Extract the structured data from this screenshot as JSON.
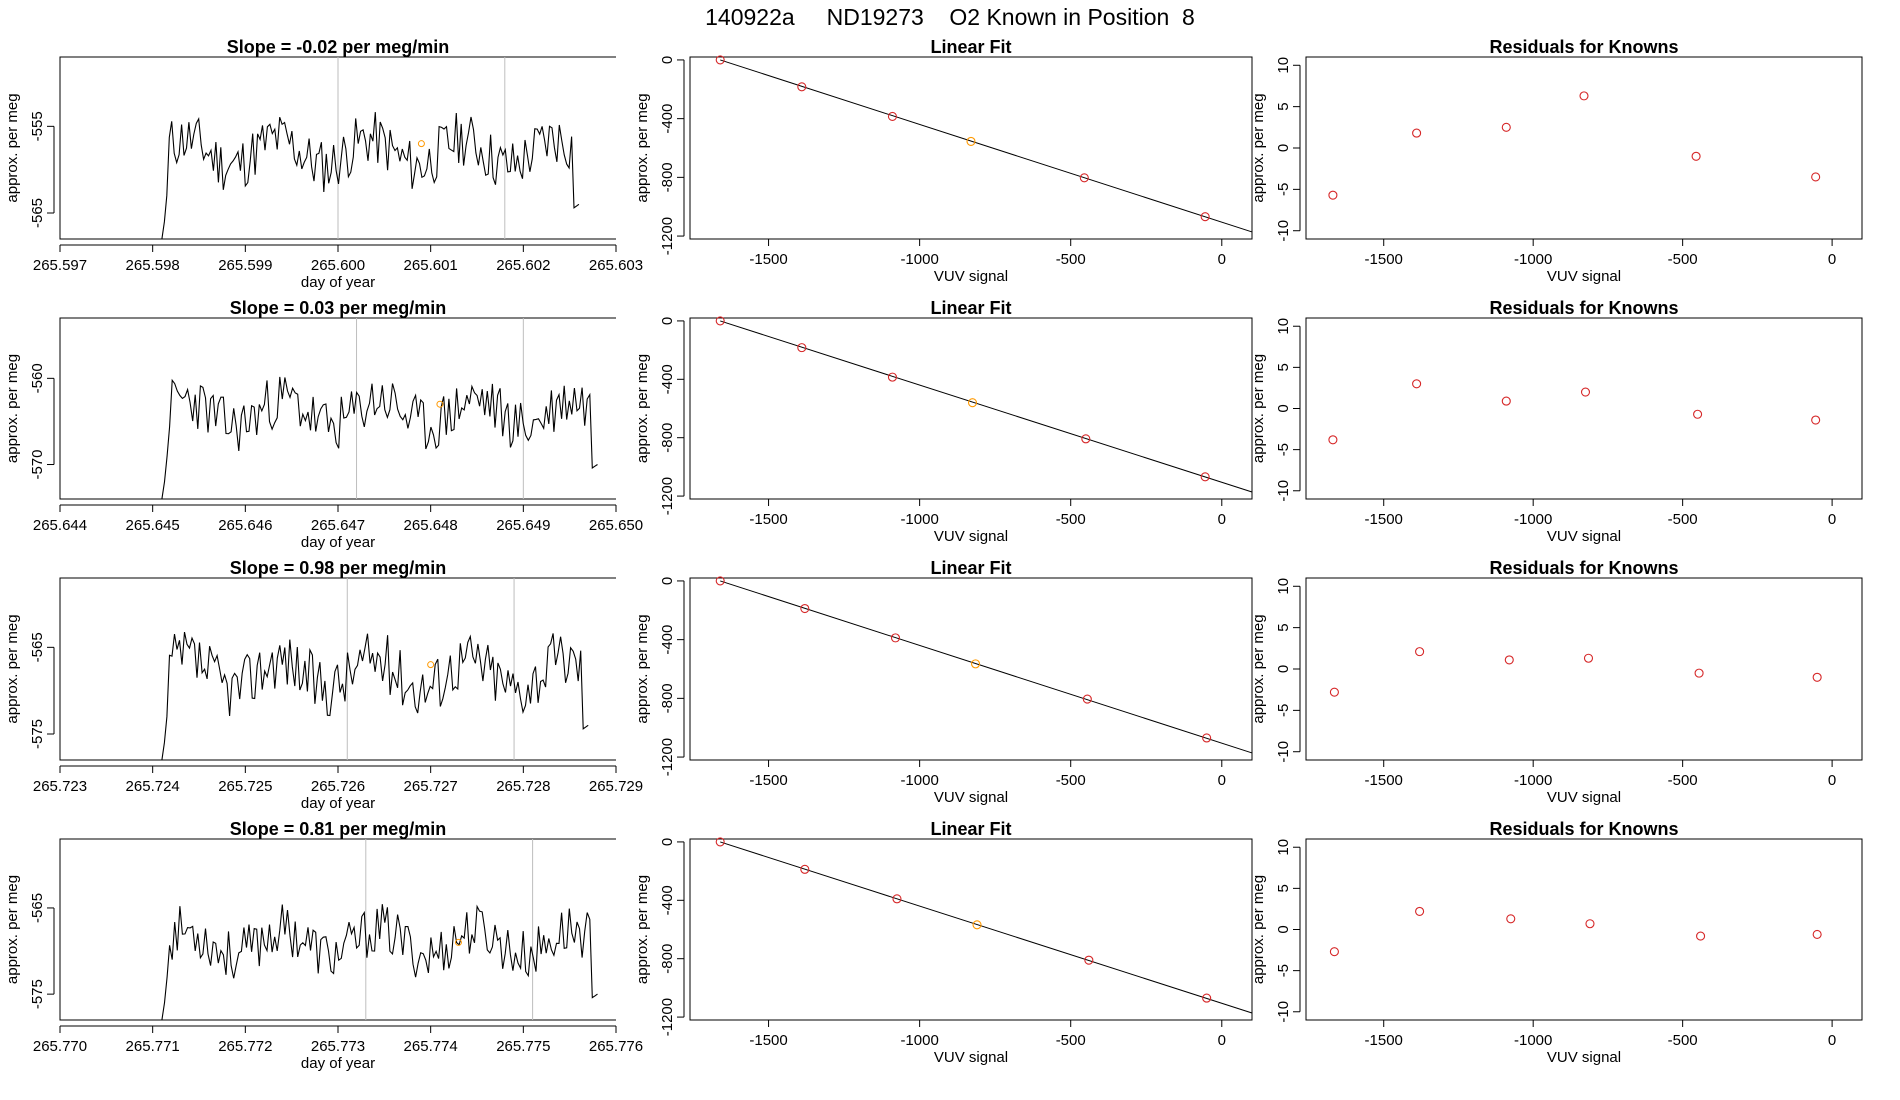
{
  "figure_title": "140922a     ND19273    O2 Known in Position  8",
  "colors": {
    "trace": "#000000",
    "vline": "#bebebe",
    "known_point": "#d62728",
    "highlight_point": "#ff9900",
    "fit_line": "#000000"
  },
  "chart_data": [
    {
      "type": "line",
      "row": 1,
      "col": 1,
      "title": "Slope =  -0.02  per meg/min",
      "xlabel": "day of year",
      "ylabel": "approx. per meg",
      "xlim": [
        265.597,
        265.603
      ],
      "ylim": [
        -568,
        -547
      ],
      "xticks": [
        265.597,
        265.598,
        265.599,
        265.6,
        265.601,
        265.602,
        265.603
      ],
      "xtick_labels": [
        "265.597",
        "265.598",
        "265.599",
        "265.600",
        "265.601",
        "265.602",
        "265.603"
      ],
      "yticks": [
        -565,
        -555
      ],
      "ytick_labels": [
        "-565",
        "-555"
      ],
      "vlines": [
        265.6,
        265.6018
      ],
      "x_start": 265.5981,
      "x_end": 265.6026,
      "center": -558,
      "amp": 3.2,
      "seed": 11,
      "highlight": {
        "x": 265.6009,
        "y": -557
      }
    },
    {
      "type": "scatter",
      "row": 1,
      "col": 2,
      "title": "Linear Fit",
      "xlabel": "VUV signal",
      "ylabel": "approx. per meg",
      "xlim": [
        -1760,
        100
      ],
      "ylim": [
        -1220,
        20
      ],
      "xticks": [
        -1500,
        -1000,
        -500,
        0
      ],
      "xtick_labels": [
        "-1500",
        "-1000",
        "-500",
        "0"
      ],
      "yticks": [
        0,
        -400,
        -800,
        -1200
      ],
      "ytick_labels": [
        "0",
        "-400",
        "-800",
        "-1200"
      ],
      "fit": {
        "x0": -1660,
        "y0": 0,
        "x1": 100,
        "y1": -1172
      },
      "points": [
        {
          "x": -1660,
          "y": 0
        },
        {
          "x": -1390,
          "y": -183
        },
        {
          "x": -1090,
          "y": -385
        },
        {
          "x": -830,
          "y": -555,
          "highlight": true
        },
        {
          "x": -455,
          "y": -803
        },
        {
          "x": -55,
          "y": -1068
        }
      ]
    },
    {
      "type": "scatter",
      "row": 1,
      "col": 3,
      "title": "Residuals for Knowns",
      "xlabel": "VUV signal",
      "ylabel": "approx. per meg",
      "xlim": [
        -1760,
        100
      ],
      "ylim": [
        -11,
        11
      ],
      "xticks": [
        -1500,
        -1000,
        -500,
        0
      ],
      "xtick_labels": [
        "-1500",
        "-1000",
        "-500",
        "0"
      ],
      "yticks": [
        10,
        5,
        0,
        -5,
        -10
      ],
      "ytick_labels": [
        "10",
        "5",
        "0",
        "-5",
        "-10"
      ],
      "points": [
        {
          "x": -1670,
          "y": -5.7
        },
        {
          "x": -1390,
          "y": 1.8
        },
        {
          "x": -1090,
          "y": 2.5
        },
        {
          "x": -830,
          "y": 6.3
        },
        {
          "x": -455,
          "y": -1.0
        },
        {
          "x": -55,
          "y": -3.5
        }
      ]
    },
    {
      "type": "line",
      "row": 2,
      "col": 1,
      "title": "Slope =  0.03  per meg/min",
      "xlabel": "day of year",
      "ylabel": "approx. per meg",
      "xlim": [
        265.644,
        265.65
      ],
      "ylim": [
        -574,
        -553
      ],
      "xticks": [
        265.644,
        265.645,
        265.646,
        265.647,
        265.648,
        265.649,
        265.65
      ],
      "xtick_labels": [
        "265.644",
        "265.645",
        "265.646",
        "265.647",
        "265.648",
        "265.649",
        "265.650"
      ],
      "yticks": [
        -570,
        -560
      ],
      "ytick_labels": [
        "-570",
        "-560"
      ],
      "vlines": [
        265.6472,
        265.649
      ],
      "x_start": 265.6451,
      "x_end": 265.6498,
      "center": -564,
      "amp": 3.2,
      "seed": 23,
      "highlight": {
        "x": 265.6481,
        "y": -563
      }
    },
    {
      "type": "scatter",
      "row": 2,
      "col": 2,
      "title": "Linear Fit",
      "xlabel": "VUV signal",
      "ylabel": "approx. per meg",
      "xlim": [
        -1760,
        100
      ],
      "ylim": [
        -1220,
        20
      ],
      "xticks": [
        -1500,
        -1000,
        -500,
        0
      ],
      "xtick_labels": [
        "-1500",
        "-1000",
        "-500",
        "0"
      ],
      "yticks": [
        0,
        -400,
        -800,
        -1200
      ],
      "ytick_labels": [
        "0",
        "-400",
        "-800",
        "-1200"
      ],
      "fit": {
        "x0": -1660,
        "y0": 0,
        "x1": 100,
        "y1": -1172
      },
      "points": [
        {
          "x": -1660,
          "y": 0
        },
        {
          "x": -1390,
          "y": -183
        },
        {
          "x": -1090,
          "y": -385
        },
        {
          "x": -825,
          "y": -560,
          "highlight": true
        },
        {
          "x": -450,
          "y": -808
        },
        {
          "x": -55,
          "y": -1068
        }
      ]
    },
    {
      "type": "scatter",
      "row": 2,
      "col": 3,
      "title": "Residuals for Knowns",
      "xlabel": "VUV signal",
      "ylabel": "approx. per meg",
      "xlim": [
        -1760,
        100
      ],
      "ylim": [
        -11,
        11
      ],
      "xticks": [
        -1500,
        -1000,
        -500,
        0
      ],
      "xtick_labels": [
        "-1500",
        "-1000",
        "-500",
        "0"
      ],
      "yticks": [
        10,
        5,
        0,
        -5,
        -10
      ],
      "ytick_labels": [
        "10",
        "5",
        "0",
        "-5",
        "-10"
      ],
      "points": [
        {
          "x": -1670,
          "y": -3.8
        },
        {
          "x": -1390,
          "y": 3.0
        },
        {
          "x": -1090,
          "y": 0.9
        },
        {
          "x": -825,
          "y": 2.0
        },
        {
          "x": -450,
          "y": -0.7
        },
        {
          "x": -55,
          "y": -1.4
        }
      ]
    },
    {
      "type": "line",
      "row": 3,
      "col": 1,
      "title": "Slope =  0.98  per meg/min",
      "xlabel": "day of year",
      "ylabel": "approx. per meg",
      "xlim": [
        265.723,
        265.729
      ],
      "ylim": [
        -578,
        -557
      ],
      "xticks": [
        265.723,
        265.724,
        265.725,
        265.726,
        265.727,
        265.728,
        265.729
      ],
      "xtick_labels": [
        "265.723",
        "265.724",
        "265.725",
        "265.726",
        "265.727",
        "265.728",
        "265.729"
      ],
      "yticks": [
        -575,
        -565
      ],
      "ytick_labels": [
        "-575",
        "-565"
      ],
      "vlines": [
        265.7261,
        265.7279
      ],
      "x_start": 265.7241,
      "x_end": 265.7287,
      "center": -568,
      "amp": 3.4,
      "seed": 37,
      "highlight": {
        "x": 265.727,
        "y": -567
      }
    },
    {
      "type": "scatter",
      "row": 3,
      "col": 2,
      "title": "Linear Fit",
      "xlabel": "VUV signal",
      "ylabel": "approx. per meg",
      "xlim": [
        -1760,
        100
      ],
      "ylim": [
        -1220,
        20
      ],
      "xticks": [
        -1500,
        -1000,
        -500,
        0
      ],
      "xtick_labels": [
        "-1500",
        "-1000",
        "-500",
        "0"
      ],
      "yticks": [
        0,
        -400,
        -800,
        -1200
      ],
      "ytick_labels": [
        "0",
        "-400",
        "-800",
        "-1200"
      ],
      "fit": {
        "x0": -1660,
        "y0": 0,
        "x1": 100,
        "y1": -1172
      },
      "points": [
        {
          "x": -1660,
          "y": 0
        },
        {
          "x": -1380,
          "y": -188
        },
        {
          "x": -1080,
          "y": -388
        },
        {
          "x": -815,
          "y": -565,
          "highlight": true
        },
        {
          "x": -445,
          "y": -805
        },
        {
          "x": -50,
          "y": -1070
        }
      ]
    },
    {
      "type": "scatter",
      "row": 3,
      "col": 3,
      "title": "Residuals for Knowns",
      "xlabel": "VUV signal",
      "ylabel": "approx. per meg",
      "xlim": [
        -1760,
        100
      ],
      "ylim": [
        -11,
        11
      ],
      "xticks": [
        -1500,
        -1000,
        -500,
        0
      ],
      "xtick_labels": [
        "-1500",
        "-1000",
        "-500",
        "0"
      ],
      "yticks": [
        10,
        5,
        0,
        -5,
        -10
      ],
      "ytick_labels": [
        "10",
        "5",
        "0",
        "-5",
        "-10"
      ],
      "points": [
        {
          "x": -1665,
          "y": -2.8
        },
        {
          "x": -1380,
          "y": 2.1
        },
        {
          "x": -1080,
          "y": 1.1
        },
        {
          "x": -815,
          "y": 1.3
        },
        {
          "x": -445,
          "y": -0.5
        },
        {
          "x": -50,
          "y": -1.0
        }
      ]
    },
    {
      "type": "line",
      "row": 4,
      "col": 1,
      "title": "Slope =  0.81  per meg/min",
      "xlabel": "day of year",
      "ylabel": "approx. per meg",
      "xlim": [
        265.77,
        265.776
      ],
      "ylim": [
        -578,
        -557
      ],
      "xticks": [
        265.77,
        265.771,
        265.772,
        265.773,
        265.774,
        265.775,
        265.776
      ],
      "xtick_labels": [
        "265.770",
        "265.771",
        "265.772",
        "265.773",
        "265.774",
        "265.775",
        "265.776"
      ],
      "yticks": [
        -575,
        -565
      ],
      "ytick_labels": [
        "-575",
        "-565"
      ],
      "vlines": [
        265.7733,
        265.7751
      ],
      "x_start": 265.7711,
      "x_end": 265.7758,
      "center": -569,
      "amp": 3.0,
      "seed": 53,
      "highlight": {
        "x": 265.7743,
        "y": -569
      }
    },
    {
      "type": "scatter",
      "row": 4,
      "col": 2,
      "title": "Linear Fit",
      "xlabel": "VUV signal",
      "ylabel": "approx. per meg",
      "xlim": [
        -1760,
        100
      ],
      "ylim": [
        -1220,
        20
      ],
      "xticks": [
        -1500,
        -1000,
        -500,
        0
      ],
      "xtick_labels": [
        "-1500",
        "-1000",
        "-500",
        "0"
      ],
      "yticks": [
        0,
        -400,
        -800,
        -1200
      ],
      "ytick_labels": [
        "0",
        "-400",
        "-800",
        "-1200"
      ],
      "fit": {
        "x0": -1660,
        "y0": 0,
        "x1": 100,
        "y1": -1172
      },
      "points": [
        {
          "x": -1660,
          "y": 0
        },
        {
          "x": -1380,
          "y": -188
        },
        {
          "x": -1075,
          "y": -390
        },
        {
          "x": -810,
          "y": -568,
          "highlight": true
        },
        {
          "x": -440,
          "y": -810
        },
        {
          "x": -50,
          "y": -1070
        }
      ]
    },
    {
      "type": "scatter",
      "row": 4,
      "col": 3,
      "title": "Residuals for Knowns",
      "xlabel": "VUV signal",
      "ylabel": "approx. per meg",
      "xlim": [
        -1760,
        100
      ],
      "ylim": [
        -11,
        11
      ],
      "xticks": [
        -1500,
        -1000,
        -500,
        0
      ],
      "xtick_labels": [
        "-1500",
        "-1000",
        "-500",
        "0"
      ],
      "yticks": [
        10,
        5,
        0,
        -5,
        -10
      ],
      "ytick_labels": [
        "10",
        "5",
        "0",
        "-5",
        "-10"
      ],
      "points": [
        {
          "x": -1665,
          "y": -2.7
        },
        {
          "x": -1380,
          "y": 2.2
        },
        {
          "x": -1075,
          "y": 1.3
        },
        {
          "x": -810,
          "y": 0.7
        },
        {
          "x": -440,
          "y": -0.8
        },
        {
          "x": -50,
          "y": -0.6
        }
      ]
    }
  ]
}
